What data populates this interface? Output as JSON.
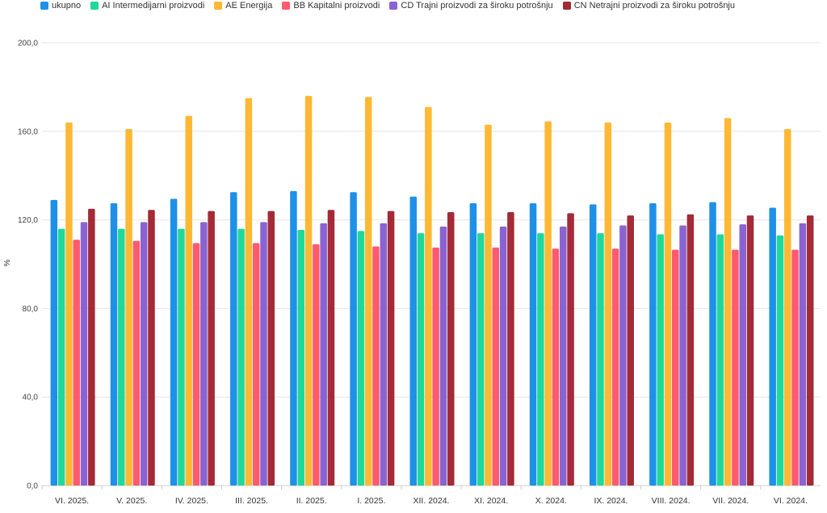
{
  "chart_data": {
    "type": "bar",
    "ylabel": "%",
    "ylim": [
      0,
      200
    ],
    "yticks": [
      "0,0",
      "40,0",
      "80,0",
      "120,0",
      "160,0",
      "200,0"
    ],
    "categories": [
      "VI. 2025.",
      "V. 2025.",
      "IV. 2025.",
      "III. 2025.",
      "II. 2025.",
      "I. 2025.",
      "XII. 2024.",
      "XI. 2024.",
      "X. 2024.",
      "IX. 2024.",
      "VIII. 2024.",
      "VII. 2024.",
      "VI. 2024."
    ],
    "legend_position": "top-left",
    "grid": true,
    "series": [
      {
        "name": "ukupno",
        "color": "#1e90e8",
        "values": [
          129,
          127.5,
          129.5,
          132.5,
          133,
          132.5,
          130.5,
          127.5,
          127.5,
          127,
          127.5,
          128,
          125.5
        ]
      },
      {
        "name": "AI Intermedijarni proizvodi",
        "color": "#1fd89a",
        "values": [
          116,
          116,
          116,
          116,
          115.5,
          115,
          114,
          114,
          114,
          114,
          113.5,
          113.5,
          113
        ]
      },
      {
        "name": "AE Energija",
        "color": "#ffb833",
        "values": [
          164,
          161,
          167,
          175,
          176,
          175.5,
          171,
          163,
          164.5,
          164,
          164,
          166,
          161
        ]
      },
      {
        "name": "BB Kapitalni proizvodi",
        "color": "#ff5a6e",
        "values": [
          111,
          110.5,
          109.5,
          109.5,
          109,
          108,
          107.5,
          107.5,
          107,
          107,
          106.5,
          106.5,
          106.5
        ]
      },
      {
        "name": "CD Trajni proizvodi za široku potrošnju",
        "color": "#8a63d2",
        "values": [
          119,
          119,
          119,
          119,
          118.5,
          118.5,
          117,
          117,
          117,
          117.5,
          117.5,
          118,
          118.5
        ]
      },
      {
        "name": "CN Netrajni proizvodi za široku potrošnju",
        "color": "#a32a36",
        "values": [
          125,
          124.5,
          124,
          124,
          124.5,
          124,
          123.5,
          123.5,
          123,
          122,
          122.5,
          122,
          122
        ]
      }
    ]
  }
}
